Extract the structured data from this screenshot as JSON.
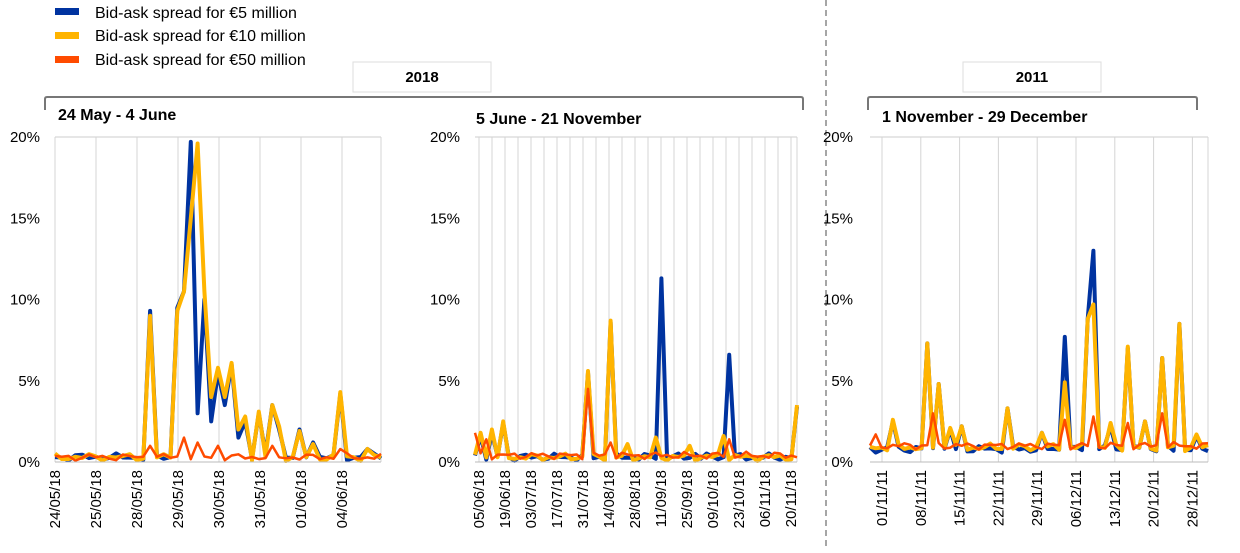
{
  "chart_data": {
    "type": "line",
    "legend": {
      "placement": "top-left",
      "entries": [
        {
          "name": "Bid-ask spread for €5 million",
          "color": "#0033a0"
        },
        {
          "name": "Bid-ask spread for €10 million",
          "color": "#ffb400"
        },
        {
          "name": "Bid-ask spread for €50 million",
          "color": "#ff4b00"
        }
      ]
    },
    "groups": [
      {
        "label": "2018"
      },
      {
        "label": "2011"
      }
    ],
    "panels": [
      {
        "title": "24 May - 4 June",
        "ylim": [
          0,
          20
        ],
        "y_ticks": [
          "0%",
          "5%",
          "10%",
          "15%",
          "20%"
        ],
        "x_ticks": [
          "24/05/18",
          "25/05/18",
          "28/05/18",
          "29/05/18",
          "30/05/18",
          "31/05/18",
          "01/06/18",
          "04/06/18"
        ],
        "n_points": 49,
        "series": [
          {
            "name": "€5 million",
            "baseline": 0.3,
            "spikes": [
              [
                14,
                9.3
              ],
              [
                18,
                9.5
              ],
              [
                19,
                10.5
              ],
              [
                20,
                19.7
              ],
              [
                21,
                3
              ],
              [
                22,
                10
              ],
              [
                23,
                2.5
              ],
              [
                24,
                5.5
              ],
              [
                25,
                3.5
              ],
              [
                26,
                6
              ],
              [
                27,
                1.5
              ],
              [
                28,
                2.5
              ],
              [
                30,
                3
              ],
              [
                32,
                3.5
              ],
              [
                33,
                2
              ],
              [
                36,
                2
              ],
              [
                38,
                1.2
              ],
              [
                42,
                4.2
              ],
              [
                46,
                0.8
              ]
            ]
          },
          {
            "name": "€10 million",
            "baseline": 0.3,
            "spikes": [
              [
                14,
                9.0
              ],
              [
                18,
                9.3
              ],
              [
                19,
                10.5
              ],
              [
                20,
                15
              ],
              [
                21,
                19.6
              ],
              [
                22,
                10.5
              ],
              [
                23,
                4
              ],
              [
                24,
                5.8
              ],
              [
                25,
                4
              ],
              [
                26,
                6.1
              ],
              [
                27,
                2
              ],
              [
                28,
                2.8
              ],
              [
                30,
                3.1
              ],
              [
                32,
                3.5
              ],
              [
                33,
                2.2
              ],
              [
                36,
                1.9
              ],
              [
                38,
                1.1
              ],
              [
                42,
                4.3
              ],
              [
                46,
                0.8
              ]
            ]
          },
          {
            "name": "€50 million",
            "baseline": 0.3,
            "spikes": [
              [
                14,
                1
              ],
              [
                19,
                1.5
              ],
              [
                21,
                1.2
              ],
              [
                24,
                1
              ],
              [
                32,
                1
              ],
              [
                42,
                0.8
              ]
            ]
          }
        ]
      },
      {
        "title": "5 June - 21 November",
        "ylim": [
          0,
          20
        ],
        "y_ticks": [
          "0%",
          "5%",
          "10%",
          "15%",
          "20%"
        ],
        "x_ticks": [
          "05/06/18",
          "19/06/18",
          "03/07/18",
          "17/07/18",
          "31/07/18",
          "14/08/18",
          "28/08/18",
          "11/09/18",
          "25/09/18",
          "09/10/18",
          "23/10/18",
          "06/11/18",
          "20/11/18"
        ],
        "n_points": 58,
        "series": [
          {
            "name": "€5 million",
            "baseline": 0.3,
            "spikes": [
              [
                1,
                1.6
              ],
              [
                3,
                1.8
              ],
              [
                5,
                2.4
              ],
              [
                20,
                5.5
              ],
              [
                24,
                8.6
              ],
              [
                33,
                11.3
              ],
              [
                39,
                0.5
              ],
              [
                45,
                6.6
              ],
              [
                57,
                3.4
              ]
            ]
          },
          {
            "name": "€10 million",
            "baseline": 0.3,
            "spikes": [
              [
                1,
                1.8
              ],
              [
                3,
                2
              ],
              [
                5,
                2.5
              ],
              [
                20,
                5.6
              ],
              [
                24,
                8.7
              ],
              [
                27,
                1.1
              ],
              [
                32,
                1.5
              ],
              [
                38,
                1.0
              ],
              [
                44,
                1.6
              ],
              [
                57,
                3.5
              ]
            ]
          },
          {
            "name": "€50 million",
            "baseline": 0.4,
            "spikes": [
              [
                0,
                1.8
              ],
              [
                2,
                1.4
              ],
              [
                20,
                4.5
              ],
              [
                24,
                1.2
              ],
              [
                45,
                1.4
              ]
            ]
          }
        ]
      },
      {
        "title": "1 November - 29 December",
        "ylim": [
          0,
          20
        ],
        "y_ticks": [
          "0%",
          "5%",
          "10%",
          "15%",
          "20%"
        ],
        "x_ticks": [
          "01/11/11",
          "08/11/11",
          "15/11/11",
          "22/11/11",
          "29/11/11",
          "06/12/11",
          "13/12/11",
          "20/12/11",
          "28/12/11"
        ],
        "n_points": 60,
        "series": [
          {
            "name": "€5 million",
            "baseline": 0.8,
            "spikes": [
              [
                4,
                2.5
              ],
              [
                10,
                7.3
              ],
              [
                12,
                4.8
              ],
              [
                14,
                2
              ],
              [
                16,
                2.2
              ],
              [
                24,
                3.3
              ],
              [
                30,
                1.8
              ],
              [
                34,
                7.7
              ],
              [
                38,
                8.8
              ],
              [
                39,
                13
              ],
              [
                42,
                2.2
              ],
              [
                45,
                7
              ],
              [
                48,
                2.5
              ],
              [
                51,
                6.4
              ],
              [
                54,
                8.5
              ],
              [
                57,
                1.6
              ]
            ]
          },
          {
            "name": "€10 million",
            "baseline": 0.9,
            "spikes": [
              [
                4,
                2.6
              ],
              [
                10,
                7.3
              ],
              [
                12,
                4.8
              ],
              [
                14,
                2.1
              ],
              [
                16,
                2.2
              ],
              [
                24,
                3.3
              ],
              [
                30,
                1.8
              ],
              [
                34,
                4.9
              ],
              [
                38,
                8.8
              ],
              [
                39,
                9.7
              ],
              [
                42,
                2.4
              ],
              [
                45,
                7.1
              ],
              [
                48,
                2.5
              ],
              [
                51,
                6.4
              ],
              [
                54,
                8.5
              ],
              [
                57,
                1.7
              ]
            ]
          },
          {
            "name": "€50 million",
            "baseline": 1.0,
            "spikes": [
              [
                1,
                1.7
              ],
              [
                11,
                3
              ],
              [
                34,
                2.6
              ],
              [
                39,
                2.8
              ],
              [
                45,
                2.4
              ],
              [
                51,
                3.0
              ]
            ]
          }
        ]
      }
    ]
  }
}
